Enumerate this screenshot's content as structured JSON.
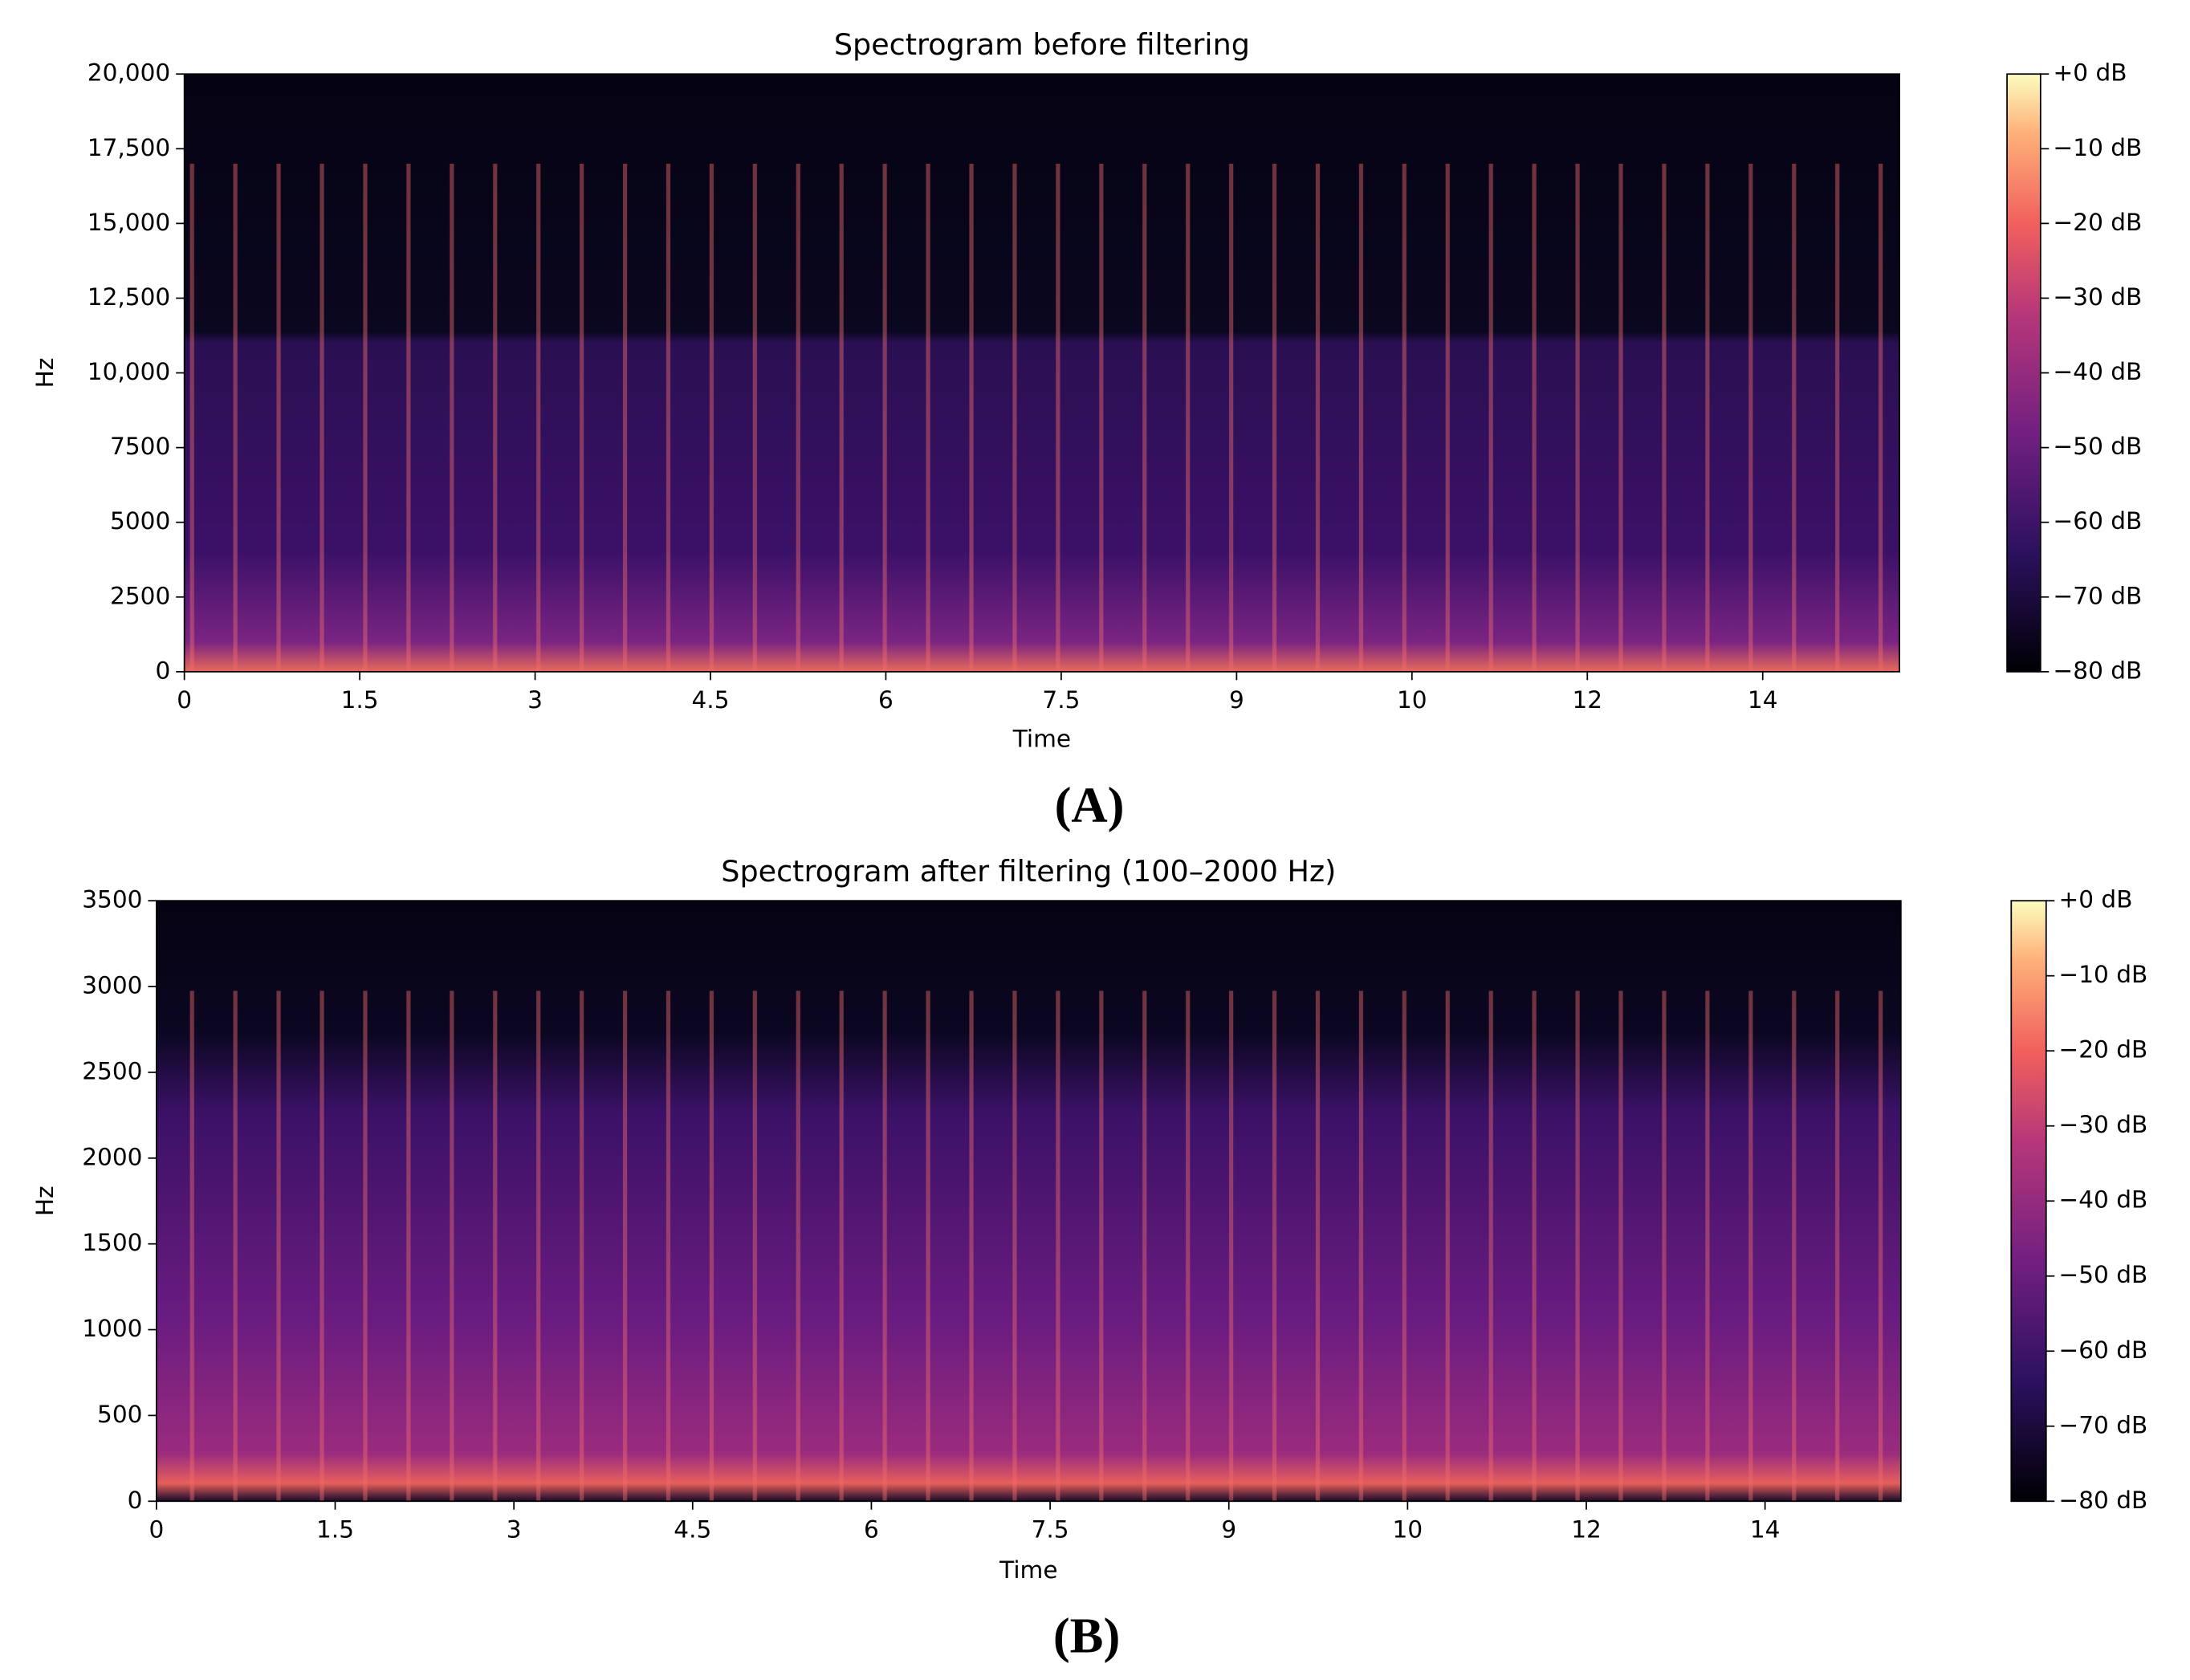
{
  "chart_data": [
    {
      "type": "spectrogram",
      "panel_label": "(A)",
      "title": "Spectrogram before filtering",
      "xlabel": "Time",
      "ylabel": "Hz",
      "xlim": [
        0,
        14.67
      ],
      "xticks": [
        0,
        1.5,
        3,
        4.5,
        6,
        7.5,
        9,
        {
          "value": 10.5,
          "label": "10"
        },
        12,
        {
          "value": 13.5,
          "label": "14"
        }
      ],
      "ylim": [
        0,
        20000
      ],
      "yticks": [
        0,
        2500,
        5000,
        7500,
        {
          "value": 10000,
          "label": "10,000"
        },
        {
          "value": 12500,
          "label": "12,500"
        },
        {
          "value": 15000,
          "label": "15,000"
        },
        {
          "value": 17500,
          "label": "17,500"
        },
        {
          "value": 20000,
          "label": "20,000"
        }
      ],
      "colorbar": {
        "clim": [
          -80,
          0
        ],
        "ticks": [
          {
            "value": 0,
            "label": "+0 dB"
          },
          {
            "value": -10,
            "label": "−10 dB"
          },
          {
            "value": -20,
            "label": "−20 dB"
          },
          {
            "value": -30,
            "label": "−30 dB"
          },
          {
            "value": -40,
            "label": "−40 dB"
          },
          {
            "value": -50,
            "label": "−50 dB"
          },
          {
            "value": -60,
            "label": "−60 dB"
          },
          {
            "value": -70,
            "label": "−70 dB"
          },
          {
            "value": -80,
            "label": "−80 dB"
          }
        ]
      }
    },
    {
      "type": "spectrogram",
      "panel_label": "(B)",
      "title": "Spectrogram after filtering (100–2000 Hz)",
      "xlabel": "Time",
      "ylabel": "Hz",
      "xlim": [
        0,
        14.64
      ],
      "xticks": [
        0,
        1.5,
        3,
        4.5,
        6,
        7.5,
        9,
        {
          "value": 10.5,
          "label": "10"
        },
        12,
        {
          "value": 13.5,
          "label": "14"
        }
      ],
      "ylim": [
        0,
        3500
      ],
      "yticks": [
        0,
        500,
        1000,
        1500,
        2000,
        2500,
        3000,
        3500
      ],
      "colorbar": {
        "clim": [
          -80,
          0
        ],
        "ticks": [
          {
            "value": 0,
            "label": "+0 dB"
          },
          {
            "value": -10,
            "label": "−10 dB"
          },
          {
            "value": -20,
            "label": "−20 dB"
          },
          {
            "value": -30,
            "label": "−30 dB"
          },
          {
            "value": -40,
            "label": "−40 dB"
          },
          {
            "value": -50,
            "label": "−50 dB"
          },
          {
            "value": -60,
            "label": "−60 dB"
          },
          {
            "value": -70,
            "label": "−70 dB"
          },
          {
            "value": -80,
            "label": "−80 dB"
          }
        ]
      }
    }
  ]
}
